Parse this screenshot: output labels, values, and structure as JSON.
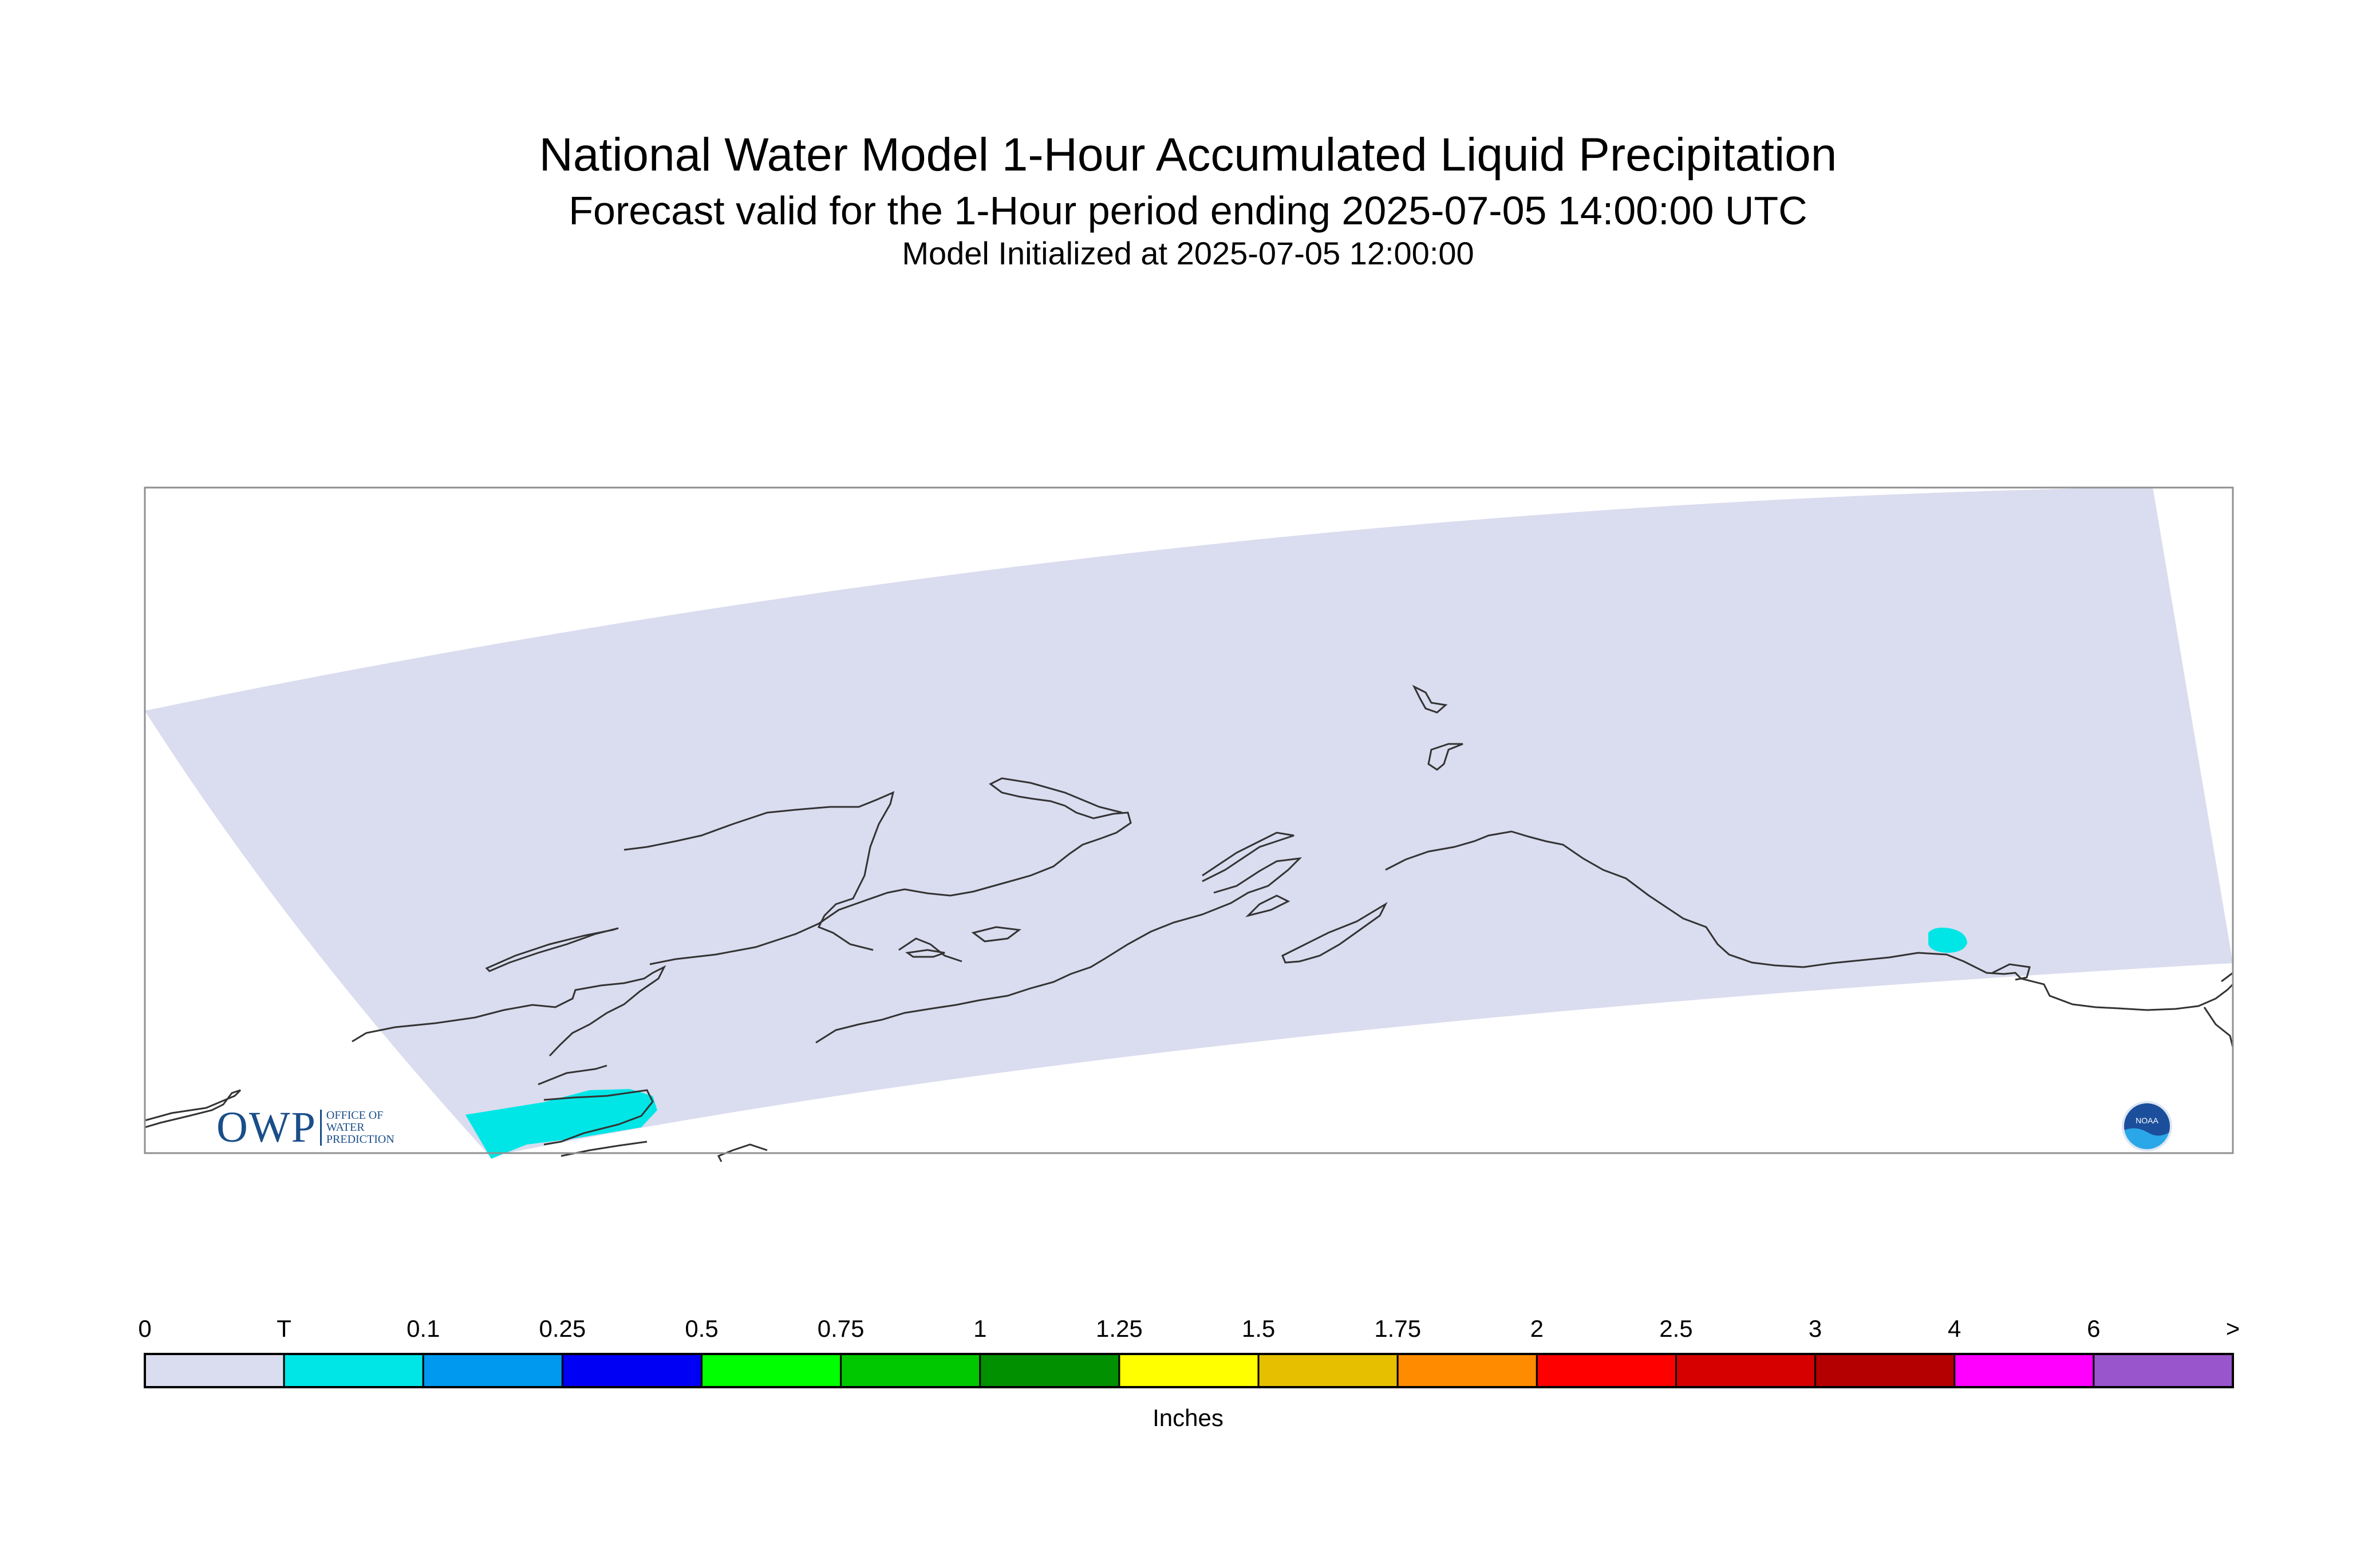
{
  "title": "National Water Model 1-Hour Accumulated Liquid Precipitation",
  "subtitle": "Forecast valid for the 1-Hour period ending 2025-07-05 14:00:00 UTC",
  "init_line": "Model Initialized at 2025-07-05 12:00:00",
  "logos": {
    "owp_big": "OWP",
    "owp_small": [
      "OFFICE OF",
      "WATER",
      "PREDICTION"
    ],
    "noaa": "NOAA"
  },
  "map": {
    "region": "Alaska",
    "domain_fill_color": "#dadcef",
    "coastline_color": "#333333",
    "precip_areas": [
      {
        "location": "Southwest Alaska Peninsula",
        "category": "T",
        "color": "#00e6e6"
      },
      {
        "location": "Southeast Alaska Panhandle",
        "category": "T",
        "color": "#00e6e6"
      }
    ]
  },
  "colorbar": {
    "units": "Inches",
    "ticks": [
      "0",
      "T",
      "0.1",
      "0.25",
      "0.5",
      "0.75",
      "1",
      "1.25",
      "1.5",
      "1.75",
      "2",
      "2.5",
      "3",
      "4",
      "6",
      ">"
    ],
    "colors": [
      "#dadcef",
      "#00e6e6",
      "#0099f0",
      "#0000f5",
      "#00ff00",
      "#00c800",
      "#009000",
      "#ffff00",
      "#e6c000",
      "#ff8c00",
      "#ff0000",
      "#d60000",
      "#b40000",
      "#ff00ff",
      "#9955cc"
    ]
  }
}
